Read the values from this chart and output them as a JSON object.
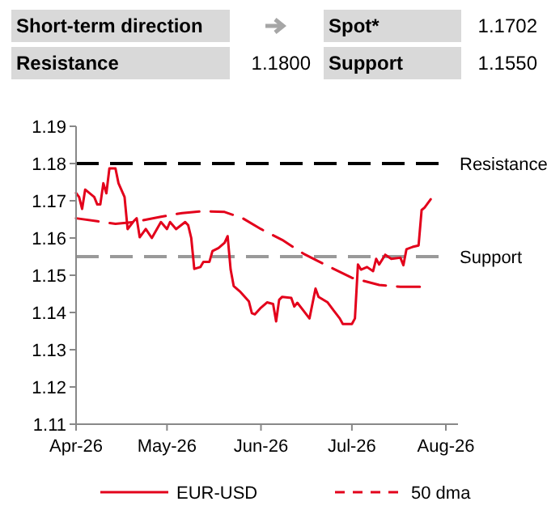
{
  "chart_data": [
    {
      "type": "other",
      "annotations": [
        "Short-term direction",
        "Spot*",
        "1.1702",
        "Resistance",
        "1.1800",
        "Support",
        "1.1550"
      ]
    },
    {
      "type": "line",
      "xlim": [
        "2026-04-01",
        "2026-08-05"
      ],
      "ylim": [
        1.11,
        1.19
      ],
      "xticks": [
        {
          "value": "2026-04-01",
          "label": "Apr-26"
        },
        {
          "value": "2026-05-01",
          "label": "May-26"
        },
        {
          "value": "2026-06-01",
          "label": "Jun-26"
        },
        {
          "value": "2026-07-01",
          "label": "Jul-26"
        },
        {
          "value": "2026-08-01",
          "label": "Aug-26"
        }
      ],
      "yticks": [
        1.11,
        1.12,
        1.13,
        1.14,
        1.15,
        1.16,
        1.17,
        1.18,
        1.19
      ],
      "grid": false,
      "legend": "bottom",
      "ref_lines": [
        {
          "axis": "y",
          "value": 1.18,
          "label": "Resistance",
          "color": "#000000",
          "line_style": "dashed"
        },
        {
          "axis": "y",
          "value": 1.155,
          "label": "Support",
          "color": "#999999",
          "line_style": "dashed"
        }
      ],
      "series": [
        {
          "name": "EUR-USD",
          "color": "#e3001b",
          "line_style": "solid",
          "x": [
            "2026-04-01",
            "2026-04-02",
            "2026-04-03",
            "2026-04-04",
            "2026-04-07",
            "2026-04-08",
            "2026-04-09",
            "2026-04-10",
            "2026-04-11",
            "2026-04-12",
            "2026-04-14",
            "2026-04-15",
            "2026-04-17",
            "2026-04-18",
            "2026-04-20",
            "2026-04-21",
            "2026-04-22",
            "2026-04-24",
            "2026-04-26",
            "2026-04-29",
            "2026-05-01",
            "2026-05-02",
            "2026-05-04",
            "2026-05-07",
            "2026-05-08",
            "2026-05-09",
            "2026-05-10",
            "2026-05-12",
            "2026-05-13",
            "2026-05-15",
            "2026-05-16",
            "2026-05-18",
            "2026-05-20",
            "2026-05-21",
            "2026-05-22",
            "2026-05-23",
            "2026-05-25",
            "2026-05-28",
            "2026-05-29",
            "2026-05-30",
            "2026-06-01",
            "2026-06-03",
            "2026-06-05",
            "2026-06-06",
            "2026-06-07",
            "2026-06-08",
            "2026-06-11",
            "2026-06-12",
            "2026-06-13",
            "2026-06-15",
            "2026-06-17",
            "2026-06-19",
            "2026-06-20",
            "2026-06-23",
            "2026-06-25",
            "2026-06-27",
            "2026-06-28",
            "2026-07-01",
            "2026-07-02",
            "2026-07-03",
            "2026-07-04",
            "2026-07-06",
            "2026-07-08",
            "2026-07-09",
            "2026-07-10",
            "2026-07-12",
            "2026-07-14",
            "2026-07-17",
            "2026-07-18",
            "2026-07-19",
            "2026-07-21",
            "2026-07-23",
            "2026-07-24",
            "2026-07-25",
            "2026-07-27"
          ],
          "values": [
            1.1721,
            1.171,
            1.1678,
            1.173,
            1.171,
            1.169,
            1.169,
            1.1747,
            1.172,
            1.1787,
            1.1787,
            1.1747,
            1.171,
            1.1624,
            1.1645,
            1.1653,
            1.1602,
            1.1624,
            1.16,
            1.1643,
            1.1624,
            1.1643,
            1.1624,
            1.1643,
            1.1634,
            1.16,
            1.1517,
            1.1522,
            1.1536,
            1.1536,
            1.1565,
            1.1573,
            1.1587,
            1.1605,
            1.1515,
            1.1471,
            1.1457,
            1.143,
            1.1398,
            1.1395,
            1.1413,
            1.1427,
            1.1423,
            1.1376,
            1.1434,
            1.1442,
            1.1439,
            1.1416,
            1.1426,
            1.1405,
            1.1384,
            1.1464,
            1.1442,
            1.1427,
            1.1405,
            1.1384,
            1.1369,
            1.1369,
            1.1384,
            1.1529,
            1.1515,
            1.1522,
            1.1511,
            1.1544,
            1.1529,
            1.1555,
            1.1544,
            1.1547,
            1.1527,
            1.157,
            1.1576,
            1.158,
            1.1675,
            1.1682,
            1.1704
          ]
        },
        {
          "name": "50 dma",
          "color": "#e3001b",
          "line_style": "dashed",
          "x": [
            "2026-04-01",
            "2026-04-08",
            "2026-04-14",
            "2026-04-20",
            "2026-04-29",
            "2026-05-06",
            "2026-05-13",
            "2026-05-20",
            "2026-05-26",
            "2026-06-01",
            "2026-06-08",
            "2026-06-15",
            "2026-06-22",
            "2026-07-01",
            "2026-07-10",
            "2026-07-17",
            "2026-07-24"
          ],
          "values": [
            1.1653,
            1.1645,
            1.1638,
            1.1643,
            1.1657,
            1.1667,
            1.1672,
            1.167,
            1.1653,
            1.1624,
            1.1595,
            1.1558,
            1.1529,
            1.1493,
            1.1474,
            1.1469,
            1.1469
          ]
        }
      ]
    }
  ]
}
